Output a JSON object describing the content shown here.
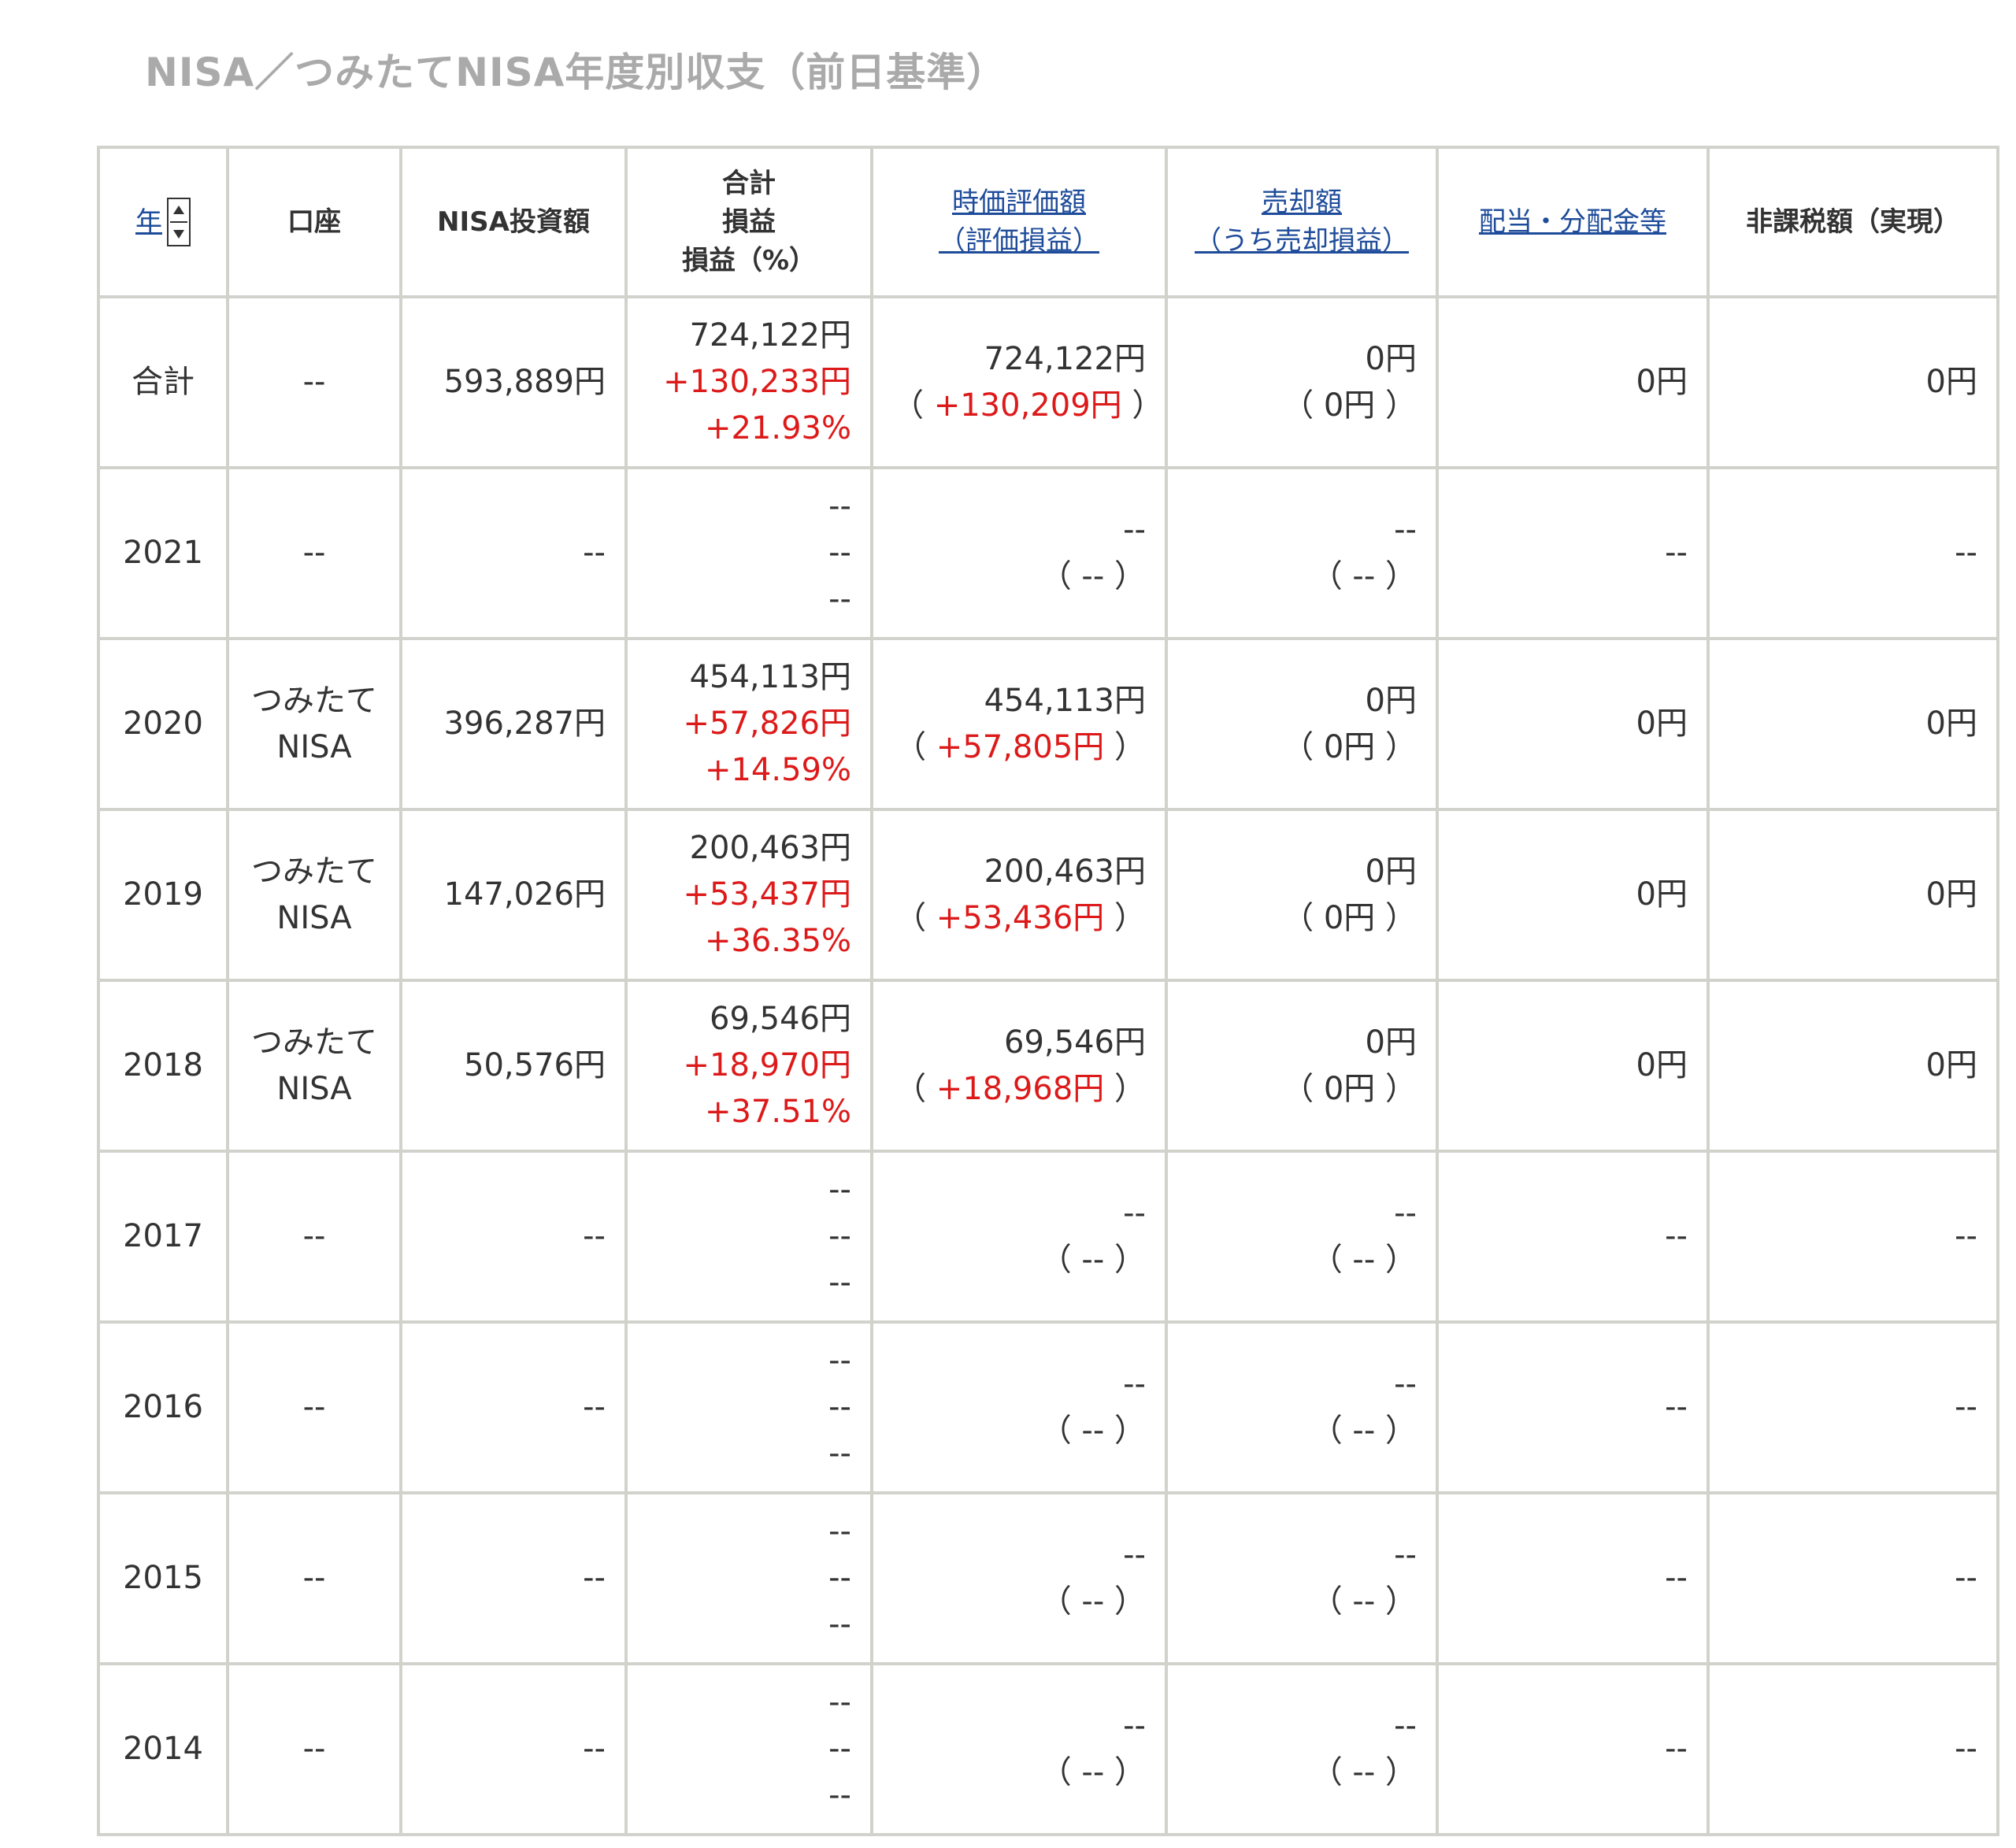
{
  "page_title": "NISA／つみたてNISA年度別収支（前日基準）",
  "headers": {
    "year": "年",
    "account": "口座",
    "investment": "NISA投資額",
    "total_lines": [
      "合計",
      "損益",
      "損益（%）"
    ],
    "market_value_lines": [
      "時価評価額",
      "（評価損益）"
    ],
    "sale_lines": [
      "売却額",
      "（うち売却損益）"
    ],
    "dividend": "配当・分配金等",
    "tax_free": "非課税額（実現）"
  },
  "rows": [
    {
      "year": "合計",
      "account": [
        "--"
      ],
      "investment": "593,889円",
      "total": [
        "724,122円",
        "+130,233円",
        "+21.93%"
      ],
      "market": [
        "724,122円",
        "（ ",
        "+130,209円",
        " ）"
      ],
      "sale": [
        "0円",
        "（ 0円 ）"
      ],
      "dividend": "0円",
      "taxfree": "0円"
    },
    {
      "year": "2021",
      "account": [
        "--"
      ],
      "investment": "--",
      "total": [
        "--",
        "--",
        "--"
      ],
      "market": [
        "--",
        "（ ",
        "--",
        " ）"
      ],
      "sale": [
        "--",
        "（ -- ）"
      ],
      "dividend": "--",
      "taxfree": "--"
    },
    {
      "year": "2020",
      "account": [
        "つみたて",
        "NISA"
      ],
      "investment": "396,287円",
      "total": [
        "454,113円",
        "+57,826円",
        "+14.59%"
      ],
      "market": [
        "454,113円",
        "（ ",
        "+57,805円",
        " ）"
      ],
      "sale": [
        "0円",
        "（ 0円 ）"
      ],
      "dividend": "0円",
      "taxfree": "0円"
    },
    {
      "year": "2019",
      "account": [
        "つみたて",
        "NISA"
      ],
      "investment": "147,026円",
      "total": [
        "200,463円",
        "+53,437円",
        "+36.35%"
      ],
      "market": [
        "200,463円",
        "（ ",
        "+53,436円",
        " ）"
      ],
      "sale": [
        "0円",
        "（ 0円 ）"
      ],
      "dividend": "0円",
      "taxfree": "0円"
    },
    {
      "year": "2018",
      "account": [
        "つみたて",
        "NISA"
      ],
      "investment": "50,576円",
      "total": [
        "69,546円",
        "+18,970円",
        "+37.51%"
      ],
      "market": [
        "69,546円",
        "（ ",
        "+18,968円",
        " ）"
      ],
      "sale": [
        "0円",
        "（ 0円 ）"
      ],
      "dividend": "0円",
      "taxfree": "0円"
    },
    {
      "year": "2017",
      "account": [
        "--"
      ],
      "investment": "--",
      "total": [
        "--",
        "--",
        "--"
      ],
      "market": [
        "--",
        "（ ",
        "--",
        " ）"
      ],
      "sale": [
        "--",
        "（ -- ）"
      ],
      "dividend": "--",
      "taxfree": "--"
    },
    {
      "year": "2016",
      "account": [
        "--"
      ],
      "investment": "--",
      "total": [
        "--",
        "--",
        "--"
      ],
      "market": [
        "--",
        "（ ",
        "--",
        " ）"
      ],
      "sale": [
        "--",
        "（ -- ）"
      ],
      "dividend": "--",
      "taxfree": "--"
    },
    {
      "year": "2015",
      "account": [
        "--"
      ],
      "investment": "--",
      "total": [
        "--",
        "--",
        "--"
      ],
      "market": [
        "--",
        "（ ",
        "--",
        " ）"
      ],
      "sale": [
        "--",
        "（ -- ）"
      ],
      "dividend": "--",
      "taxfree": "--"
    },
    {
      "year": "2014",
      "account": [
        "--"
      ],
      "investment": "--",
      "total": [
        "--",
        "--",
        "--"
      ],
      "market": [
        "--",
        "（ ",
        "--",
        " ）"
      ],
      "sale": [
        "--",
        "（ -- ）"
      ],
      "dividend": "--",
      "taxfree": "--"
    }
  ],
  "colors": {
    "positive": "#dd1a1a",
    "link": "#1f4c9a",
    "title": "#aaaaaa",
    "border": "#d2d2cc"
  }
}
